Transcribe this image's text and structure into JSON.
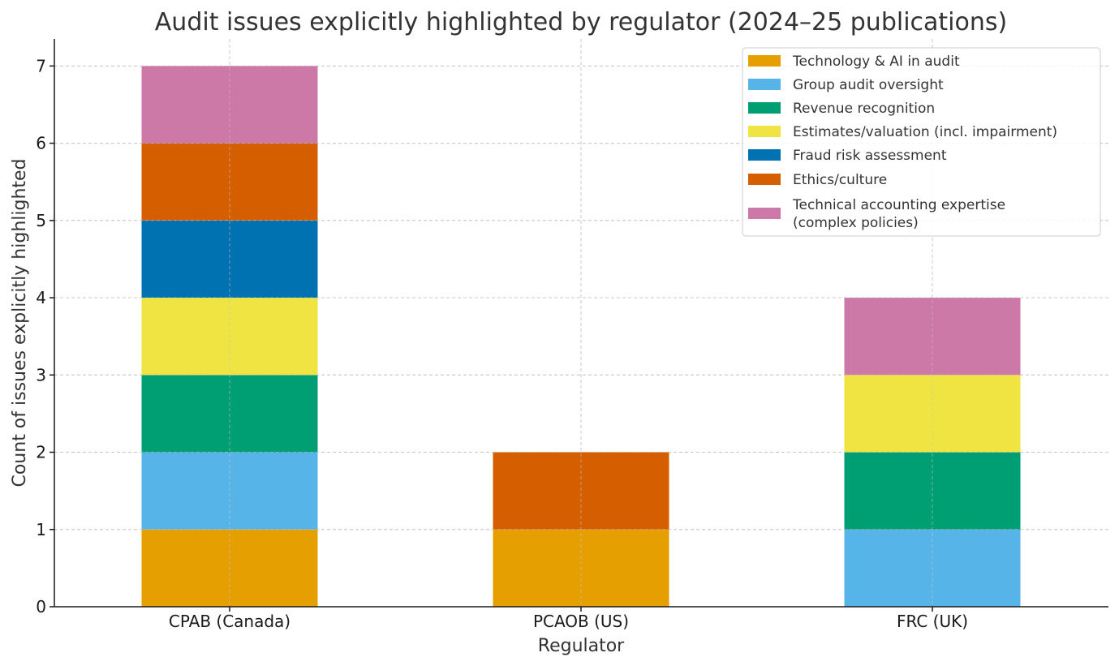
{
  "chart_data": {
    "type": "bar",
    "stacked": true,
    "title": "Audit issues explicitly highlighted by regulator (2024–25 publications)",
    "xlabel": "Regulator",
    "ylabel": "Count of issues explicitly highlighted",
    "categories": [
      "CPAB (Canada)",
      "PCAOB (US)",
      "FRC (UK)"
    ],
    "ylim": [
      0,
      7.35
    ],
    "yticks": [
      0,
      1,
      2,
      3,
      4,
      5,
      6,
      7
    ],
    "grid": true,
    "legend_position": "top-right",
    "series": [
      {
        "name": "Technology & AI in audit",
        "legend_lines": [
          "Technology & AI in audit"
        ],
        "color": "#E69F00",
        "values": [
          1,
          1,
          0
        ]
      },
      {
        "name": "Group audit oversight",
        "legend_lines": [
          "Group audit oversight"
        ],
        "color": "#56B4E9",
        "values": [
          1,
          0,
          1
        ]
      },
      {
        "name": "Revenue recognition",
        "legend_lines": [
          "Revenue recognition"
        ],
        "color": "#009E73",
        "values": [
          1,
          0,
          1
        ]
      },
      {
        "name": "Estimates/valuation (incl. impairment)",
        "legend_lines": [
          "Estimates/valuation (incl. impairment)"
        ],
        "color": "#F0E442",
        "values": [
          1,
          0,
          1
        ]
      },
      {
        "name": "Fraud risk assessment",
        "legend_lines": [
          "Fraud risk assessment"
        ],
        "color": "#0072B2",
        "values": [
          1,
          0,
          0
        ]
      },
      {
        "name": "Ethics/culture",
        "legend_lines": [
          "Ethics/culture"
        ],
        "color": "#D55E00",
        "values": [
          1,
          1,
          0
        ]
      },
      {
        "name": "Technical accounting expertise (complex policies)",
        "legend_lines": [
          "Technical accounting expertise",
          "(complex policies)"
        ],
        "color": "#CC79A7",
        "values": [
          1,
          0,
          1
        ]
      }
    ]
  }
}
